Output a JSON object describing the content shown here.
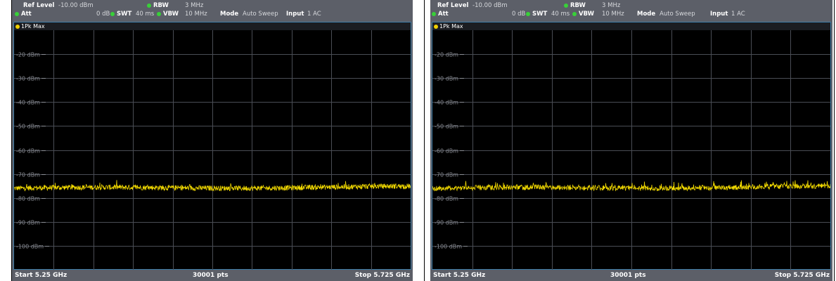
{
  "analyzers": [
    {
      "ref_level_label": "Ref Level",
      "ref_level_value": "-10.00 dBm",
      "att_label": "Att",
      "att_value": "0 dB",
      "swt_label": "SWT",
      "swt_value": "40 ms",
      "rbw_label": "RBW",
      "rbw_value": "3 MHz",
      "vbw_label": "VBW",
      "vbw_value": "10 MHz",
      "mode_label": "Mode",
      "mode_value": "Auto Sweep",
      "input_label": "Input",
      "input_value": "1 AC",
      "trace_label": "1Pk Max",
      "y_ticks": [
        "-20 dBm",
        "-30 dBm",
        "-40 dBm",
        "-50 dBm",
        "-60 dBm",
        "-70 dBm",
        "-80 dBm",
        "-90 dBm",
        "-100 dBm"
      ],
      "start_label": "Start 5.25 GHz",
      "points_label": "30001 pts",
      "stop_label": "Stop 5.725 GHz"
    },
    {
      "ref_level_label": "Ref Level",
      "ref_level_value": "-10.00 dBm",
      "att_label": "Att",
      "att_value": "0 dB",
      "swt_label": "SWT",
      "swt_value": "40 ms",
      "rbw_label": "RBW",
      "rbw_value": "3 MHz",
      "vbw_label": "VBW",
      "vbw_value": "10 MHz",
      "mode_label": "Mode",
      "mode_value": "Auto Sweep",
      "input_label": "Input",
      "input_value": "1 AC",
      "trace_label": "1Pk Max",
      "y_ticks": [
        "-20 dBm",
        "-30 dBm",
        "-40 dBm",
        "-50 dBm",
        "-60 dBm",
        "-70 dBm",
        "-80 dBm",
        "-90 dBm",
        "-100 dBm"
      ],
      "start_label": "Start 5.25 GHz",
      "points_label": "30001 pts",
      "stop_label": "Stop 5.725 GHz"
    }
  ],
  "colors": {
    "trace": "#f0d800",
    "grid": "#4a4d55",
    "header_bg": "#5c5f68",
    "status_dot": "#38d038"
  },
  "trace_level_dbm": -76,
  "y_range_dbm": [
    -110,
    -10
  ]
}
